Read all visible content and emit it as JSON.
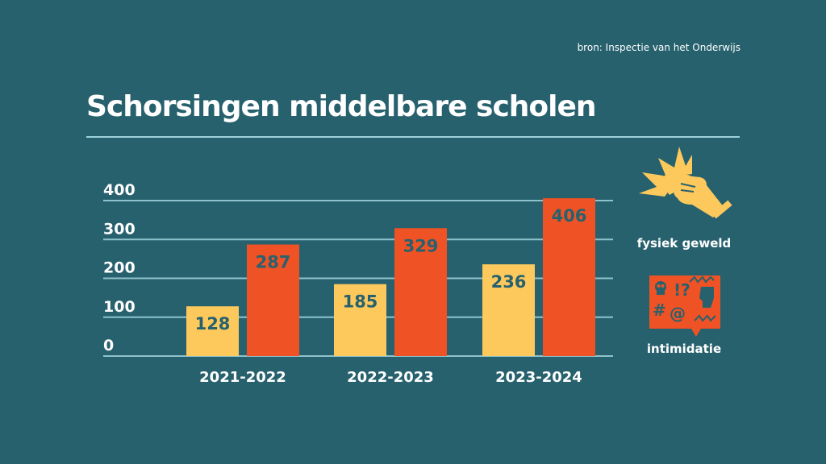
{
  "source": "bron: Inspectie van het Onderwijs",
  "colors": {
    "background": "#27616e",
    "yellow": "#fdc95c",
    "red": "#ef5224",
    "grid": "#8fc3cc"
  },
  "chart_data": {
    "type": "bar",
    "title": "Schorsingen middelbare scholen",
    "categories": [
      "2021-2022",
      "2022-2023",
      "2023-2024"
    ],
    "series": [
      {
        "name": "fysiek geweld",
        "color": "#fdc95c",
        "values": [
          128,
          185,
          236
        ]
      },
      {
        "name": "intimidatie",
        "color": "#ef5224",
        "values": [
          287,
          329,
          406
        ]
      }
    ],
    "yticks": [
      "0",
      "100",
      "200",
      "300",
      "400"
    ],
    "ytick_values": [
      0,
      100,
      200,
      300,
      400
    ],
    "ylim": [
      0,
      400
    ],
    "grid": true,
    "legend": "right",
    "xlabel": "",
    "ylabel": ""
  },
  "legend": {
    "items": [
      {
        "label": "fysiek geweld",
        "icon": "fist-impact-icon"
      },
      {
        "label": "intimidatie",
        "icon": "speech-bubble-threat-icon"
      }
    ]
  }
}
